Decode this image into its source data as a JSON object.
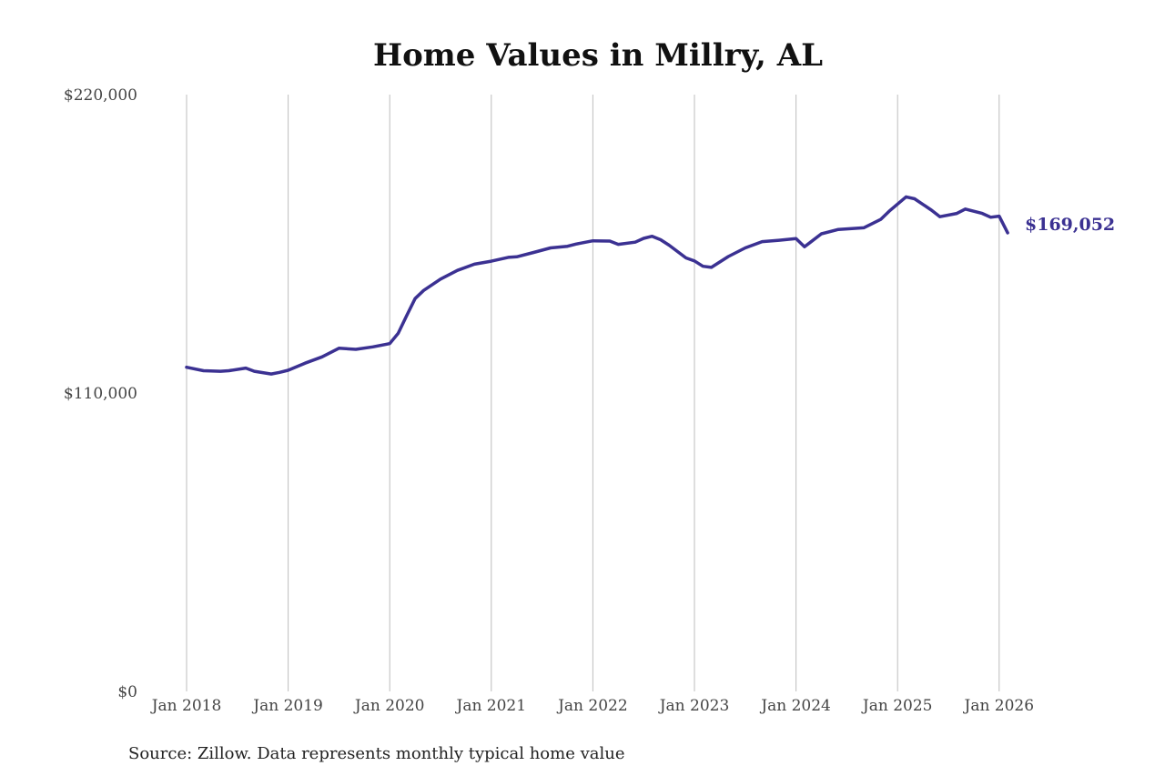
{
  "source_note": "Source: Zillow. Data represents monthly typical home value",
  "colors": {
    "line": "#3b3192",
    "grid": "#bdbdbd",
    "text": "#444444"
  },
  "chart_data": {
    "type": "line",
    "title": "Home Values in Millry, AL",
    "xlabel": "",
    "ylabel": "",
    "ylim": [
      0,
      220000
    ],
    "y_ticks": [
      {
        "value": 0,
        "label": "$0"
      },
      {
        "value": 110000,
        "label": "$110,000"
      },
      {
        "value": 220000,
        "label": "$220,000"
      }
    ],
    "x_ticks": [
      {
        "date": "2018-01",
        "label": "Jan 2018"
      },
      {
        "date": "2019-01",
        "label": "Jan 2019"
      },
      {
        "date": "2020-01",
        "label": "Jan 2020"
      },
      {
        "date": "2021-01",
        "label": "Jan 2021"
      },
      {
        "date": "2022-01",
        "label": "Jan 2022"
      },
      {
        "date": "2023-01",
        "label": "Jan 2023"
      },
      {
        "date": "2024-01",
        "label": "Jan 2024"
      },
      {
        "date": "2025-01",
        "label": "Jan 2025"
      },
      {
        "date": "2026-01",
        "label": "Jan 2026"
      }
    ],
    "grid": "vertical",
    "end_label": "$169,052",
    "series": [
      {
        "x": [
          "2018-01",
          "2018-03",
          "2018-05",
          "2018-06",
          "2018-08",
          "2018-09",
          "2018-11",
          "2018-12",
          "2019-01",
          "2019-03",
          "2019-05",
          "2019-07",
          "2019-09",
          "2019-11",
          "2020-01",
          "2020-02",
          "2020-03",
          "2020-04",
          "2020-05",
          "2020-07",
          "2020-09",
          "2020-11",
          "2021-01",
          "2021-03",
          "2021-04",
          "2021-06",
          "2021-08",
          "2021-10",
          "2021-11",
          "2022-01",
          "2022-03",
          "2022-04",
          "2022-06",
          "2022-07",
          "2022-08",
          "2022-09",
          "2022-10",
          "2022-12",
          "2023-01",
          "2023-02",
          "2023-03",
          "2023-05",
          "2023-07",
          "2023-09",
          "2023-11",
          "2024-01",
          "2024-02",
          "2024-04",
          "2024-06",
          "2024-09",
          "2024-11",
          "2024-12",
          "2025-02",
          "2025-03",
          "2025-05",
          "2025-06",
          "2025-08",
          "2025-09",
          "2025-11",
          "2025-12",
          "2026-01"
        ],
        "values": [
          119500,
          118200,
          118000,
          118200,
          119200,
          118000,
          117000,
          117600,
          118400,
          121000,
          123300,
          126500,
          126100,
          127000,
          128200,
          132000,
          138500,
          144800,
          147800,
          152000,
          155200,
          157500,
          158600,
          160000,
          160200,
          161800,
          163500,
          164100,
          164900,
          166100,
          166000,
          164800,
          165600,
          167000,
          167800,
          166500,
          164500,
          159800,
          158700,
          156700,
          156300,
          160300,
          163500,
          165800,
          166300,
          166900,
          163900,
          168700,
          170300,
          170900,
          174000,
          177000,
          182300,
          181600,
          177400,
          175000,
          176200,
          177800,
          176200,
          174800,
          175200
        ]
      }
    ],
    "last_point": {
      "x": "2026-02",
      "value": 169052
    }
  }
}
